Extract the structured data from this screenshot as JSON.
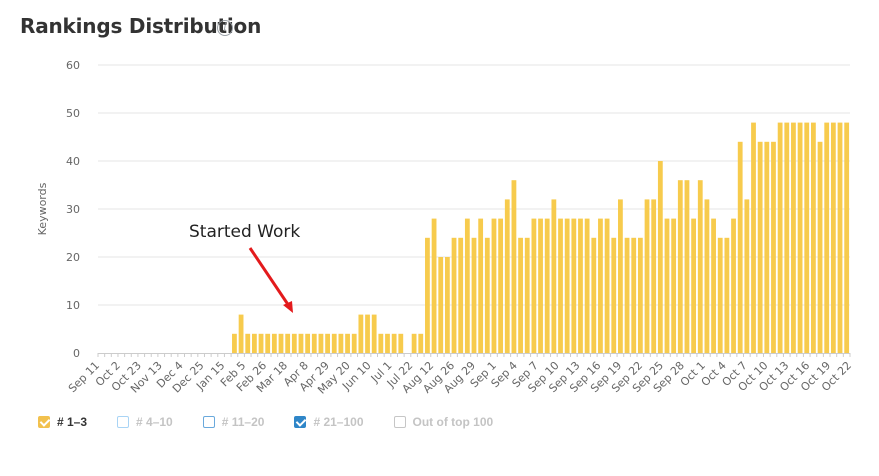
{
  "header": {
    "title": "Rankings Distribution",
    "info_icon": "info-icon"
  },
  "colors": {
    "bar": "#f7cb4d",
    "grid": "#e6e6e6",
    "axis": "#cccccc",
    "annotation_arrow": "#e31a1c"
  },
  "annotation": {
    "text": "Started Work"
  },
  "legend": [
    {
      "label": "# 1–3",
      "checked": true,
      "color": "#f2c14e",
      "active": true
    },
    {
      "label": "# 4–10",
      "checked": false,
      "color": "#a9d4f5",
      "active": false
    },
    {
      "label": "# 11–20",
      "checked": false,
      "color": "#6aa9dc",
      "active": false
    },
    {
      "label": "# 21–100",
      "checked": true,
      "color": "#2f86c8",
      "active": false
    },
    {
      "label": "Out of top 100",
      "checked": false,
      "color": "#c6c6c6",
      "active": false
    }
  ],
  "chart_data": {
    "type": "bar",
    "title": "Rankings Distribution",
    "ylabel": "Keywords",
    "xlabel": "",
    "ylim": [
      0,
      60
    ],
    "yticks": [
      0,
      10,
      20,
      30,
      40,
      50,
      60
    ],
    "grid": true,
    "legend_position": "bottom-left",
    "tick_labels": [
      "Sep 11",
      "Oct 2",
      "Oct 23",
      "Nov 13",
      "Dec 4",
      "Dec 25",
      "Jan 15",
      "Feb 5",
      "Feb 26",
      "Mar 18",
      "Apr 8",
      "Apr 29",
      "May 20",
      "Jun 10",
      "Jul 1",
      "Jul 22",
      "Aug 12",
      "Aug 26",
      "Aug 29",
      "Sep 1",
      "Sep 4",
      "Sep 7",
      "Sep 10",
      "Sep 13",
      "Sep 16",
      "Sep 19",
      "Sep 22",
      "Sep 25",
      "Sep 28",
      "Oct 1",
      "Oct 4",
      "Oct 7",
      "Oct 10",
      "Oct 13",
      "Oct 16",
      "Oct 19",
      "Oct 22"
    ],
    "series": [
      {
        "name": "# 1–3",
        "values": [
          0,
          0,
          0,
          0,
          0,
          0,
          0,
          0,
          0,
          0,
          0,
          0,
          0,
          0,
          0,
          0,
          0,
          0,
          0,
          0,
          4,
          8,
          4,
          4,
          4,
          4,
          4,
          4,
          4,
          4,
          4,
          4,
          4,
          4,
          4,
          4,
          4,
          4,
          4,
          8,
          8,
          8,
          4,
          4,
          4,
          4,
          0,
          4,
          4,
          24,
          28,
          20,
          20,
          24,
          24,
          28,
          24,
          28,
          24,
          28,
          28,
          32,
          36,
          24,
          24,
          28,
          28,
          28,
          32,
          28,
          28,
          28,
          28,
          28,
          24,
          28,
          28,
          24,
          32,
          24,
          24,
          24,
          32,
          32,
          40,
          28,
          28,
          36,
          36,
          28,
          36,
          32,
          28,
          24,
          24,
          28,
          44,
          32,
          48,
          44,
          44,
          44,
          48,
          48,
          48,
          48,
          48,
          48,
          44,
          48,
          48,
          48,
          48
        ]
      }
    ]
  }
}
